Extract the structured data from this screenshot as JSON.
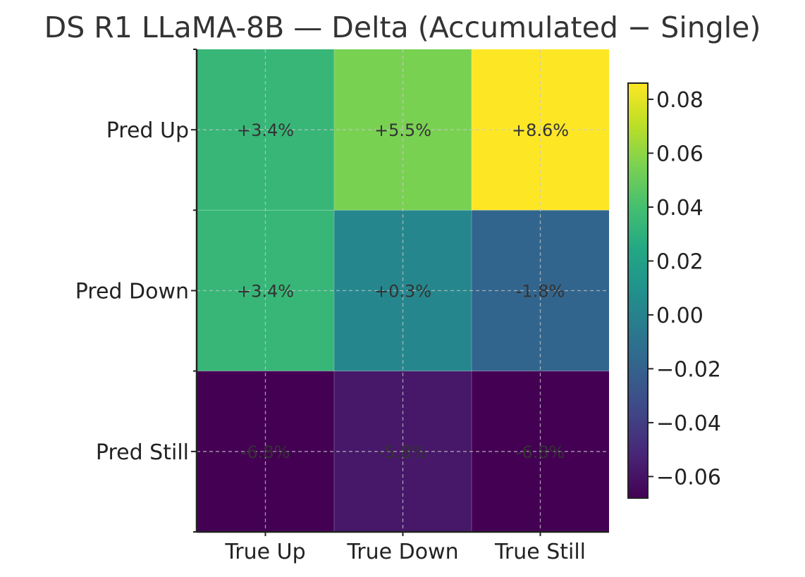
{
  "chart_data": {
    "type": "heatmap",
    "title": "DS R1 LLaMA-8B — Delta (Accumulated − Single)",
    "x_categories": [
      "True Up",
      "True Down",
      "True Still"
    ],
    "y_categories": [
      "Pred Up",
      "Pred Down",
      "Pred Still"
    ],
    "values": [
      [
        0.034,
        0.055,
        0.086
      ],
      [
        0.034,
        0.003,
        -0.018
      ],
      [
        -0.068,
        -0.058,
        -0.068
      ]
    ],
    "cell_labels": [
      [
        "+3.4%",
        "+5.5%",
        "+8.6%"
      ],
      [
        "+3.4%",
        "+0.3%",
        "-1.8%"
      ],
      [
        "-6.8%",
        "-5.8%",
        "-6.8%"
      ]
    ],
    "colormap": "viridis",
    "colorbar": {
      "range": [
        -0.068,
        0.086
      ],
      "ticks": [
        -0.06,
        -0.04,
        -0.02,
        0.0,
        0.02,
        0.04,
        0.06,
        0.08
      ],
      "tick_labels": [
        "−0.06",
        "−0.04",
        "−0.02",
        "0.00",
        "0.02",
        "0.04",
        "0.06",
        "0.08"
      ]
    },
    "grid": true
  }
}
